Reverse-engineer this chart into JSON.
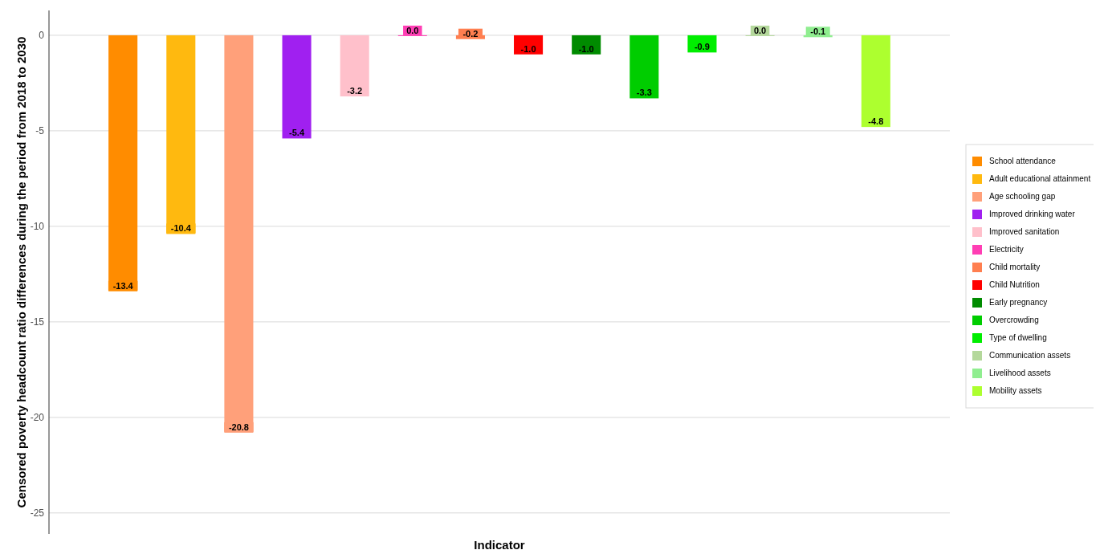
{
  "chart_data": {
    "type": "bar",
    "xlabel": "Indicator",
    "ylabel": "Censored poverty headcount ratio differences during the period from 2018 to 2030",
    "categories": [
      null
    ],
    "ylim": [
      -26.1,
      1.3
    ],
    "yticks": [
      -25,
      -20,
      -15,
      -10,
      -5,
      0
    ],
    "grid": "y",
    "legend": "right",
    "series": [
      {
        "name": "School attendance",
        "color": "#ff8c00",
        "values": [
          -13.4
        ],
        "value_labels": [
          "-13.4"
        ]
      },
      {
        "name": "Adult educational attainment",
        "color": "#ffb90f",
        "values": [
          -10.4
        ],
        "value_labels": [
          "-10.4"
        ]
      },
      {
        "name": "Age schooling gap",
        "color": "#ffa07a",
        "values": [
          -20.8
        ],
        "value_labels": [
          "-20.8"
        ]
      },
      {
        "name": "Improved drinking water",
        "color": "#a020f0",
        "values": [
          -5.4
        ],
        "value_labels": [
          "-5.4"
        ]
      },
      {
        "name": "Improved sanitation",
        "color": "#ffc0cb",
        "values": [
          -3.2
        ],
        "value_labels": [
          "-3.2"
        ]
      },
      {
        "name": "Electricity",
        "color": "#ff3eb4",
        "values": [
          0
        ],
        "value_labels": [
          "0.0"
        ]
      },
      {
        "name": "Child mortality",
        "color": "#ff7f50",
        "values": [
          -0.2
        ],
        "value_labels": [
          "-0.2"
        ]
      },
      {
        "name": "Child Nutrition",
        "color": "#ff0000",
        "values": [
          -1.0
        ],
        "value_labels": [
          "-1.0"
        ]
      },
      {
        "name": "Early pregnancy",
        "color": "#008b00",
        "values": [
          -1.0
        ],
        "value_labels": [
          "-1.0"
        ]
      },
      {
        "name": "Overcrowding",
        "color": "#00cd00",
        "values": [
          -3.3
        ],
        "value_labels": [
          "-3.3"
        ]
      },
      {
        "name": "Type of dwelling",
        "color": "#00ee00",
        "values": [
          -0.9
        ],
        "value_labels": [
          "-0.9"
        ]
      },
      {
        "name": "Communication assets",
        "color": "#b4d89b",
        "values": [
          0
        ],
        "value_labels": [
          "0.0"
        ]
      },
      {
        "name": "Livelihood assets",
        "color": "#90ee90",
        "values": [
          -0.1
        ],
        "value_labels": [
          "-0.1"
        ]
      },
      {
        "name": "Mobility assets",
        "color": "#adff2f",
        "values": [
          -4.8
        ],
        "value_labels": [
          "-4.8"
        ]
      }
    ]
  }
}
